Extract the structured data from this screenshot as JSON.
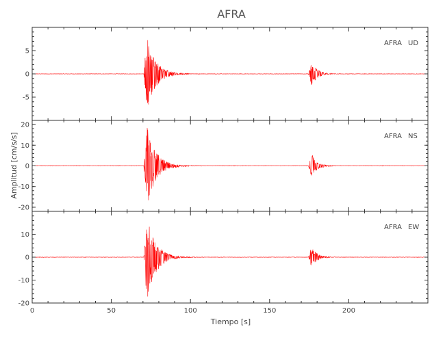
{
  "chart_data": {
    "type": "line",
    "title": "AFRA",
    "xlabel": "Tiempo [s]",
    "ylabel": "Amplitud [cm/s/s]",
    "xlim": [
      0,
      250
    ],
    "x_ticks": [
      0,
      50,
      100,
      150,
      200
    ],
    "series_color": "#ff0000",
    "panels": [
      {
        "name": "AFRA UD",
        "station": "AFRA",
        "component": "UD",
        "ylim": [
          -10,
          10
        ],
        "y_ticks": [
          -5,
          0,
          5
        ],
        "events": [
          {
            "onset": 70.5,
            "peak_time": 72.5,
            "peak": 8.3,
            "min": -8.1,
            "decay_s": 5.5
          },
          {
            "onset": 174.5,
            "peak_time": 176.5,
            "peak": 2.8,
            "min": -2.6,
            "decay_s": 3.5
          }
        ]
      },
      {
        "name": "AFRA NS",
        "station": "AFRA",
        "component": "NS",
        "ylim": [
          -22,
          22
        ],
        "y_ticks": [
          -20,
          -10,
          0,
          10,
          20
        ],
        "events": [
          {
            "onset": 70.5,
            "peak_time": 72.5,
            "peak": 20.5,
            "min": -20.2,
            "decay_s": 5.5
          },
          {
            "onset": 174.5,
            "peak_time": 176.5,
            "peak": 6.0,
            "min": -5.5,
            "decay_s": 3.5
          }
        ]
      },
      {
        "name": "AFRA EW",
        "station": "AFRA",
        "component": "EW",
        "ylim": [
          -20,
          20
        ],
        "y_ticks": [
          -20,
          -10,
          0,
          10
        ],
        "events": [
          {
            "onset": 70.5,
            "peak_time": 72.5,
            "peak": 18.8,
            "min": -19.3,
            "decay_s": 5.5
          },
          {
            "onset": 174.5,
            "peak_time": 176.5,
            "peak": 4.8,
            "min": -4.6,
            "decay_s": 3.5
          }
        ]
      }
    ]
  }
}
